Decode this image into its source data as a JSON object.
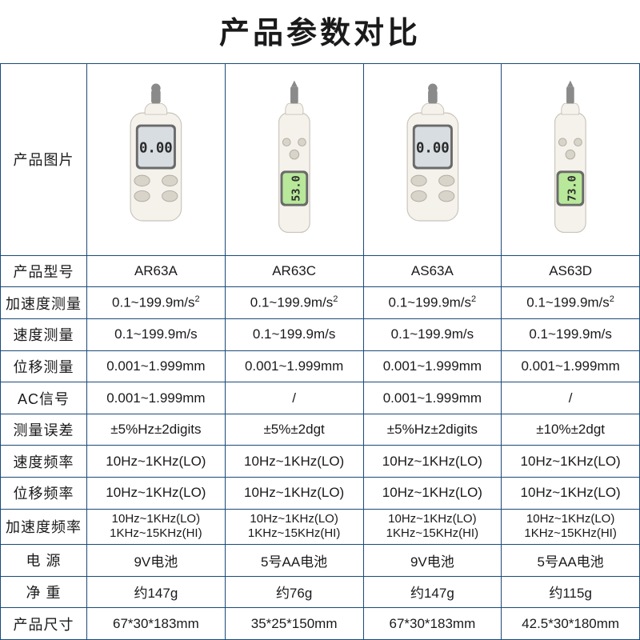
{
  "title": "产品参数对比",
  "columns": [
    "AR63A",
    "AR63C",
    "AS63A",
    "AS63D"
  ],
  "rowLabels": {
    "image": "产品图片",
    "model": "产品型号",
    "accel": "加速度测量",
    "vel": "速度测量",
    "disp": "位移测量",
    "ac": "AC信号",
    "err": "测量误差",
    "velFreq": "速度频率",
    "dispFreq": "位移频率",
    "accelFreq": "加速度频率",
    "power": "电 源",
    "weight": "净 重",
    "size": "产品尺寸"
  },
  "rows": {
    "model": [
      "AR63A",
      "AR63C",
      "AS63A",
      "AS63D"
    ],
    "accel": [
      "0.1~199.9m/s²",
      "0.1~199.9m/s²",
      "0.1~199.9m/s²",
      "0.1~199.9m/s²"
    ],
    "vel": [
      "0.1~199.9m/s",
      "0.1~199.9m/s",
      "0.1~199.9m/s",
      "0.1~199.9m/s"
    ],
    "disp": [
      "0.001~1.999mm",
      "0.001~1.999mm",
      "0.001~1.999mm",
      "0.001~1.999mm"
    ],
    "ac": [
      "0.001~1.999mm",
      "/",
      "0.001~1.999mm",
      "/"
    ],
    "err": [
      "±5%Hz±2digits",
      "±5%±2dgt",
      "±5%Hz±2digits",
      "±10%±2dgt"
    ],
    "velFreq": [
      "10Hz~1KHz(LO)",
      "10Hz~1KHz(LO)",
      "10Hz~1KHz(LO)",
      "10Hz~1KHz(LO)"
    ],
    "dispFreq": [
      "10Hz~1KHz(LO)",
      "10Hz~1KHz(LO)",
      "10Hz~1KHz(LO)",
      "10Hz~1KHz(LO)"
    ],
    "accelFreq": [
      "10Hz~1KHz(LO)\n1KHz~15KHz(HI)",
      "10Hz~1KHz(LO)\n1KHz~15KHz(HI)",
      "10Hz~1KHz(LO)\n1KHz~15KHz(HI)",
      "10Hz~1KHz(LO)\n1KHz~15KHz(HI)"
    ],
    "power": [
      "9V电池",
      "5号AA电池",
      "9V电池",
      "5号AA电池"
    ],
    "weight": [
      "约147g",
      "约76g",
      "约147g",
      "约115g"
    ],
    "size": [
      "67*30*183mm",
      "35*25*150mm",
      "67*30*183mm",
      "42.5*30*180mm"
    ]
  },
  "productStyles": {
    "bodyFill": "#f5f2ec",
    "bodyStroke": "#c8c4ba",
    "screenBezel": "#6a6a6a",
    "screenGreen": "#b8e89a",
    "screenGray": "#d8dde2",
    "digitColor": "#2a2a2a",
    "buttonOuter": "#d8d4ca",
    "buttonInner": "#b0aca2",
    "tipFill": "#8a8a8a"
  },
  "productImages": [
    {
      "shape": "wide",
      "screen": "gray",
      "digits": "0.00",
      "tip": "round"
    },
    {
      "shape": "slim",
      "screen": "green",
      "digits": "53.0",
      "tip": "point"
    },
    {
      "shape": "wide",
      "screen": "gray",
      "digits": "0.00",
      "tip": "round"
    },
    {
      "shape": "slim",
      "screen": "green",
      "digits": "73.0",
      "tip": "point"
    }
  ]
}
